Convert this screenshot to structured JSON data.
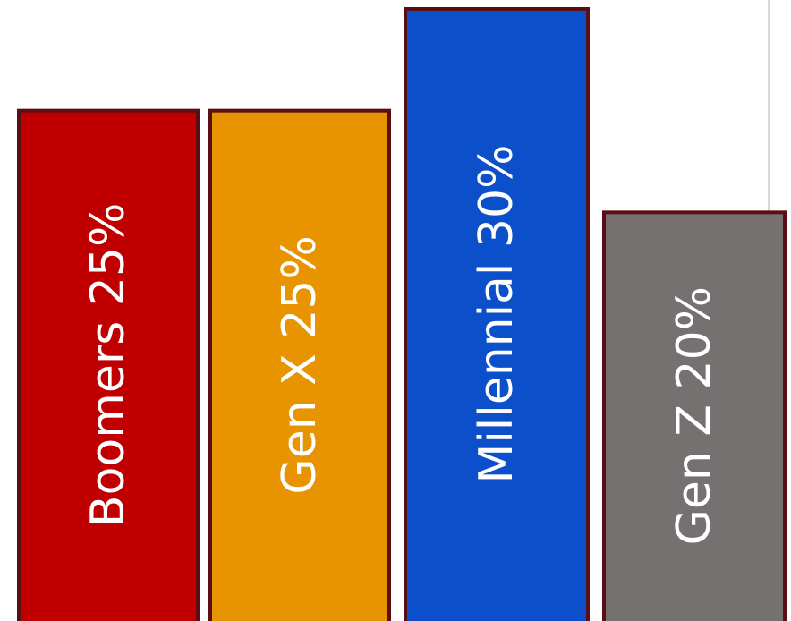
{
  "chart_data": {
    "type": "bar",
    "categories": [
      "Boomers",
      "Gen X",
      "Millennial",
      "Gen Z"
    ],
    "values": [
      25,
      25,
      30,
      20
    ],
    "labels": [
      "Boomers  25%",
      "Gen X 25%",
      "Millennial 30%",
      "Gen Z 20%"
    ],
    "colors": [
      "#c00000",
      "#e89400",
      "#0b4fca",
      "#767171"
    ],
    "border_color": "#5a0f14",
    "ylim": [
      0,
      30
    ],
    "grid": false,
    "legend": "none"
  }
}
